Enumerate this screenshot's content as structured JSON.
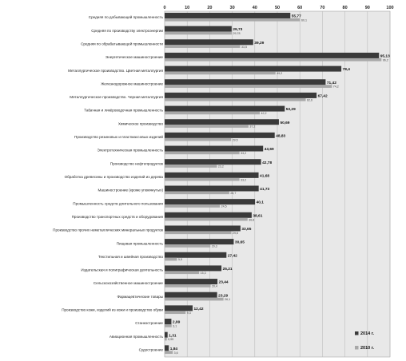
{
  "chart_data": {
    "type": "bar",
    "orientation": "horizontal",
    "xlim": [
      0,
      100
    ],
    "xticks": [
      "0",
      "10",
      "20",
      "30",
      "40",
      "50",
      "60",
      "70",
      "80",
      "90",
      "100"
    ],
    "grid": "vertical",
    "legend_position": "bottom-right",
    "categories": [
      "Средняя по добывающей промышленность",
      "Средняя по производству электроэнергии",
      "Средняя по обрабатывающей промышленности",
      "Энергетическое машиностроение",
      "Металлургическое производство. Цветная металлургия",
      "Железнодорожное машиностроение",
      "Металлургическое производство. Черная металлургия",
      "Табачная и ликёроводочная промышленность",
      "Химическое производство",
      "Производство резиновых и пластмассовых изделий",
      "Электротехническая промышленность",
      "Производство нефтепродуктов",
      "Обработка древесины и производство изделий из дерева",
      "Машиностроение (кроме упомянутых)",
      "Промышленность средств длительного пользования",
      "Производство транспортных средств и оборудования",
      "Производство прочих неметаллических минеральных продуктов",
      "Пищевая промышленность",
      "Текстильная и швейная производство",
      "Издательская и полиграфическая деятельность",
      "Сельскохозяйственное машиностроение",
      "Фармацевтические товары",
      "Производство кожи, изделий из кожи и производство обуви",
      "Станкостроение",
      "Авиационная промышленность",
      "Судостроение"
    ],
    "series": [
      {
        "name": "2014 г.",
        "color": "#3a3a3a",
        "values": [
          55.77,
          29.73,
          39.29,
          95.13,
          78.4,
          71.42,
          67.42,
          53.29,
          50.69,
          48.83,
          43.69,
          42.78,
          41.68,
          41.73,
          40.1,
          38.61,
          33.65,
          30.65,
          27.42,
          25.21,
          23.44,
          23.29,
          12.42,
          2.99,
          1.31,
          1.84
        ],
        "labels": [
          "55,77",
          "29,73",
          "39,29",
          "95,13",
          "78,4",
          "71,42",
          "67,42",
          "53,29",
          "50,69",
          "48,83",
          "43,69",
          "42,78",
          "41,68",
          "41,73",
          "40,1",
          "38,61",
          "33,65",
          "30,65",
          "27,42",
          "25,21",
          "23,44",
          "23,29",
          "12,42",
          "2,99",
          "1,31",
          "1,84"
        ]
      },
      {
        "name": "2010 г.",
        "color": "#a8a8a8",
        "values": [
          60.1,
          29.78,
          33.5,
          96.2,
          49.2,
          74.2,
          62.6,
          42.2,
          37.2,
          29.5,
          33.2,
          23.2,
          33.2,
          28.7,
          24.5,
          36.8,
          29.6,
          20.3,
          5.5,
          15.3,
          20.4,
          26.1,
          9.3,
          3.1,
          0.95,
          3.6
        ],
        "labels": [
          "60,1",
          "29,78",
          "33,5",
          "96,2",
          "49,2",
          "74,2",
          "62,6",
          "42,2",
          "37,2",
          "29,5",
          "33,2",
          "23,2",
          "33,2",
          "28,7",
          "24,5",
          "36,8",
          "29,6",
          "20,3",
          "5,5",
          "15,3",
          "20,4",
          "26,1",
          "9,3",
          "3,1",
          "0,95",
          "3,6"
        ]
      }
    ]
  }
}
